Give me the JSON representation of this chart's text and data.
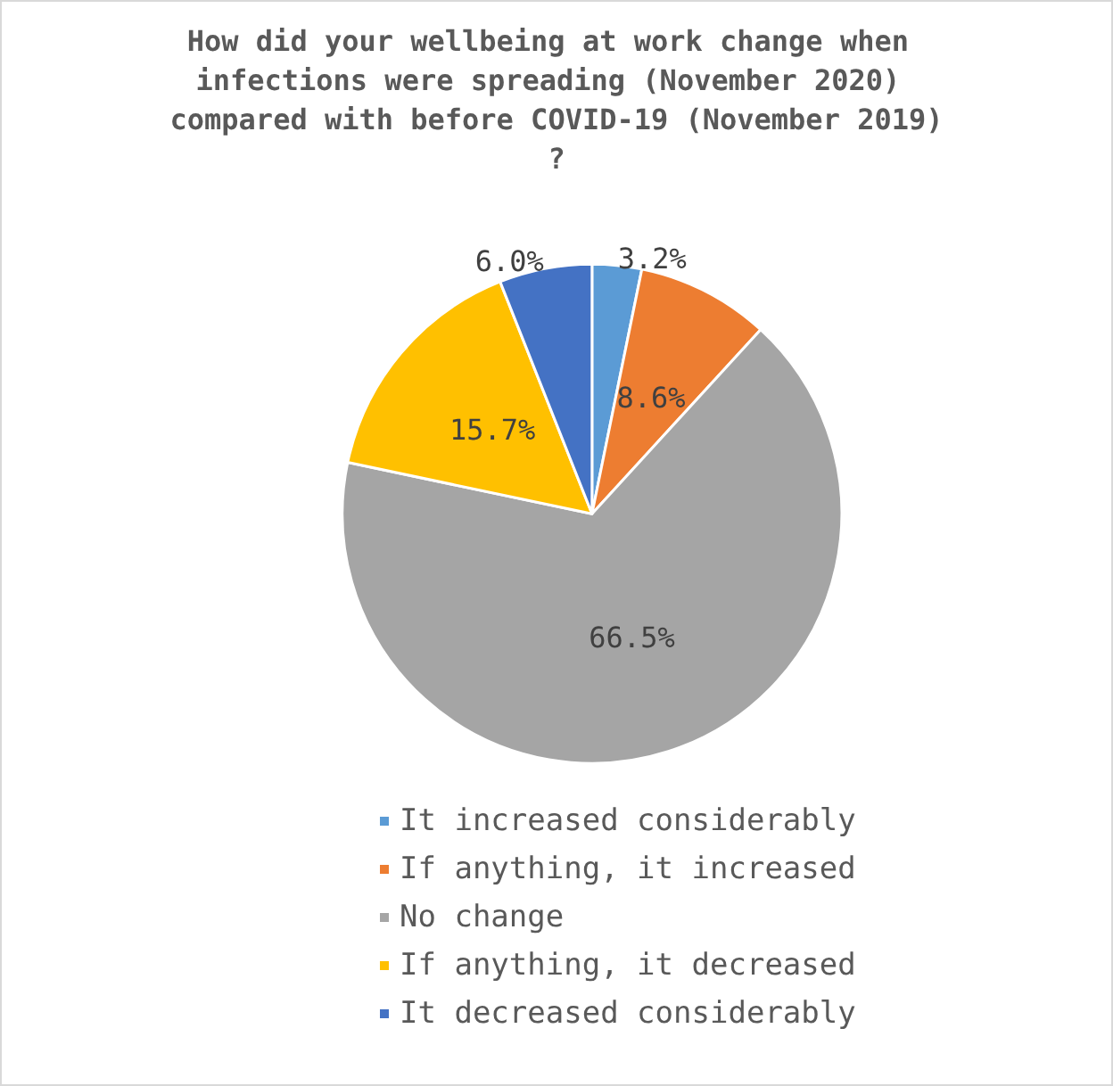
{
  "chart_data": {
    "type": "pie",
    "title": "How did your wellbeing at work change when infections were spreading (November 2020) compared with before COVID-19 (November 2019)?",
    "categories": [
      "It increased considerably",
      "If anything, it increased",
      "No change",
      "If anything, it decreased",
      "It decreased considerably"
    ],
    "values": [
      3.2,
      8.6,
      66.5,
      15.7,
      6.0
    ],
    "colors": [
      "#5b9bd5",
      "#ed7d31",
      "#a5a5a5",
      "#ffc000",
      "#4472c4"
    ],
    "value_labels": [
      "3.2%",
      "8.6%",
      "66.5%",
      "15.7%",
      "6.0%"
    ],
    "legend": "bottom"
  }
}
